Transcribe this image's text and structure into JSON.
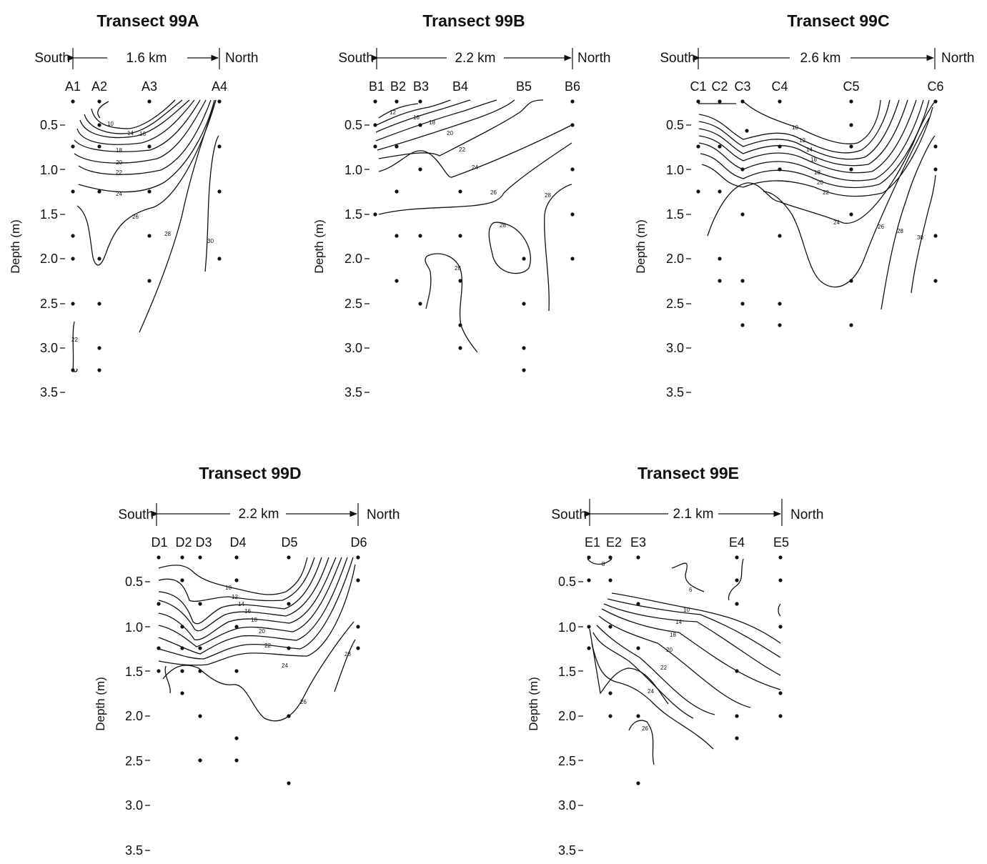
{
  "panels": [
    {
      "id": "A",
      "title": "Transect 99A",
      "south_label": "South",
      "north_label": "North",
      "distance_label": "1.6 km",
      "stations": [
        "A1",
        "A2",
        "A3",
        "A4"
      ],
      "y_label": "Depth (m)",
      "depth_ticks": [
        "0.5",
        "1.0",
        "1.5",
        "2.0",
        "2.5",
        "3.0",
        "3.5"
      ],
      "contour_labels": [
        "10",
        "14",
        "16",
        "18",
        "20",
        "22",
        "24",
        "26",
        "28",
        "30",
        "22"
      ]
    },
    {
      "id": "B",
      "title": "Transect 99B",
      "south_label": "South",
      "north_label": "North",
      "distance_label": "2.2 km",
      "stations": [
        "B1",
        "B2",
        "B3",
        "B4",
        "B5",
        "B6"
      ],
      "y_label": "Depth (m)",
      "depth_ticks": [
        "0.5",
        "1.0",
        "1.5",
        "2.0",
        "2.5",
        "3.0",
        "3.5"
      ],
      "contour_labels": [
        "12",
        "16",
        "18",
        "20",
        "22",
        "24",
        "26",
        "28",
        "28",
        "28"
      ]
    },
    {
      "id": "C",
      "title": "Transect 99C",
      "south_label": "South",
      "north_label": "North",
      "distance_label": "2.6 km",
      "stations": [
        "C1",
        "C2",
        "C3",
        "C4",
        "C5",
        "C6"
      ],
      "y_label": "Depth (m)",
      "depth_ticks": [
        "0.5",
        "1.0",
        "1.5",
        "2.0",
        "2.5",
        "3.0",
        "3.5"
      ],
      "contour_labels": [
        "10",
        "12",
        "14",
        "16",
        "18",
        "20",
        "22",
        "24",
        "26",
        "28",
        "30"
      ]
    },
    {
      "id": "D",
      "title": "Transect 99D",
      "south_label": "South",
      "north_label": "North",
      "distance_label": "2.2 km",
      "stations": [
        "D1",
        "D2",
        "D3",
        "D4",
        "D5",
        "D6"
      ],
      "y_label": "Depth (m)",
      "depth_ticks": [
        "0.5",
        "1.0",
        "1.5",
        "2.0",
        "2.5",
        "3.0",
        "3.5"
      ],
      "contour_labels": [
        "10",
        "12",
        "14",
        "16",
        "18",
        "20",
        "22",
        "24",
        "26",
        "28"
      ]
    },
    {
      "id": "E",
      "title": "Transect 99E",
      "south_label": "South",
      "north_label": "North",
      "distance_label": "2.1 km",
      "stations": [
        "E1",
        "E2",
        "E3",
        "E4",
        "E5"
      ],
      "y_label": "Depth (m)",
      "depth_ticks": [
        "0.5",
        "1.0",
        "1.5",
        "2.0",
        "2.5",
        "3.0",
        "3.5"
      ],
      "contour_labels": [
        "8",
        "6",
        "10",
        "14",
        "18",
        "20",
        "22",
        "24",
        "26"
      ]
    }
  ]
}
